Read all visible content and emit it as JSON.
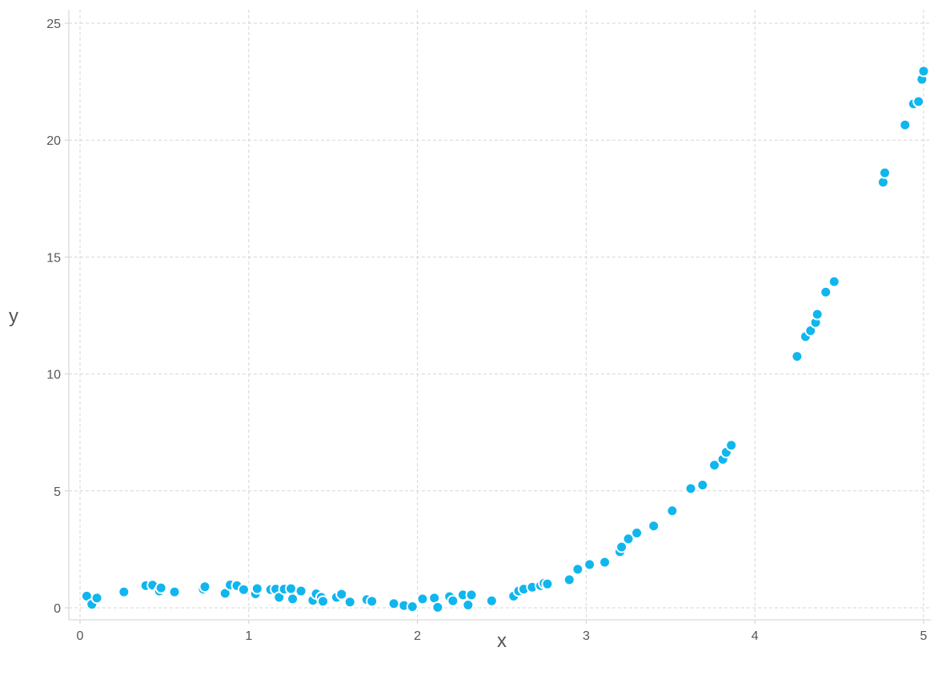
{
  "chart_data": {
    "type": "scatter",
    "xlabel": "x",
    "ylabel": "y",
    "xlim": [
      0,
      5
    ],
    "ylim": [
      0,
      25
    ],
    "x_ticks": [
      "0",
      "1",
      "2",
      "3",
      "4",
      "5"
    ],
    "y_ticks": [
      "0",
      "5",
      "10",
      "15",
      "20",
      "25"
    ],
    "grid": true,
    "point_color": "#10b6ee",
    "points": [
      [
        0.04,
        0.5
      ],
      [
        0.07,
        0.15
      ],
      [
        0.1,
        0.42
      ],
      [
        0.26,
        0.68
      ],
      [
        0.39,
        0.95
      ],
      [
        0.43,
        0.97
      ],
      [
        0.47,
        0.72
      ],
      [
        0.48,
        0.85
      ],
      [
        0.56,
        0.68
      ],
      [
        0.73,
        0.8
      ],
      [
        0.74,
        0.9
      ],
      [
        0.86,
        0.62
      ],
      [
        0.89,
        0.98
      ],
      [
        0.93,
        0.95
      ],
      [
        0.97,
        0.78
      ],
      [
        1.04,
        0.6
      ],
      [
        1.05,
        0.82
      ],
      [
        1.13,
        0.78
      ],
      [
        1.16,
        0.8
      ],
      [
        1.18,
        0.45
      ],
      [
        1.21,
        0.8
      ],
      [
        1.25,
        0.82
      ],
      [
        1.26,
        0.38
      ],
      [
        1.31,
        0.72
      ],
      [
        1.38,
        0.32
      ],
      [
        1.4,
        0.6
      ],
      [
        1.43,
        0.45
      ],
      [
        1.44,
        0.28
      ],
      [
        1.52,
        0.45
      ],
      [
        1.55,
        0.58
      ],
      [
        1.6,
        0.25
      ],
      [
        1.7,
        0.35
      ],
      [
        1.73,
        0.28
      ],
      [
        1.86,
        0.18
      ],
      [
        1.92,
        0.1
      ],
      [
        1.97,
        0.05
      ],
      [
        2.03,
        0.38
      ],
      [
        2.1,
        0.42
      ],
      [
        2.12,
        0.02
      ],
      [
        2.19,
        0.48
      ],
      [
        2.21,
        0.3
      ],
      [
        2.27,
        0.55
      ],
      [
        2.3,
        0.12
      ],
      [
        2.32,
        0.55
      ],
      [
        2.44,
        0.3
      ],
      [
        2.57,
        0.5
      ],
      [
        2.6,
        0.72
      ],
      [
        2.63,
        0.8
      ],
      [
        2.68,
        0.88
      ],
      [
        2.73,
        0.95
      ],
      [
        2.75,
        1.05
      ],
      [
        2.77,
        1.02
      ],
      [
        2.9,
        1.2
      ],
      [
        2.95,
        1.65
      ],
      [
        3.02,
        1.85
      ],
      [
        3.11,
        1.95
      ],
      [
        3.2,
        2.4
      ],
      [
        3.21,
        2.6
      ],
      [
        3.25,
        2.95
      ],
      [
        3.3,
        3.2
      ],
      [
        3.4,
        3.5
      ],
      [
        3.51,
        4.15
      ],
      [
        3.62,
        5.1
      ],
      [
        3.69,
        5.25
      ],
      [
        3.76,
        6.1
      ],
      [
        3.81,
        6.35
      ],
      [
        3.83,
        6.65
      ],
      [
        3.86,
        6.95
      ],
      [
        4.25,
        10.75
      ],
      [
        4.3,
        11.6
      ],
      [
        4.33,
        11.85
      ],
      [
        4.36,
        12.2
      ],
      [
        4.37,
        12.55
      ],
      [
        4.42,
        13.5
      ],
      [
        4.47,
        13.95
      ],
      [
        4.76,
        18.2
      ],
      [
        4.77,
        18.6
      ],
      [
        4.89,
        20.65
      ],
      [
        4.94,
        21.55
      ],
      [
        4.97,
        21.65
      ],
      [
        4.99,
        22.6
      ],
      [
        5.0,
        22.95
      ]
    ]
  }
}
